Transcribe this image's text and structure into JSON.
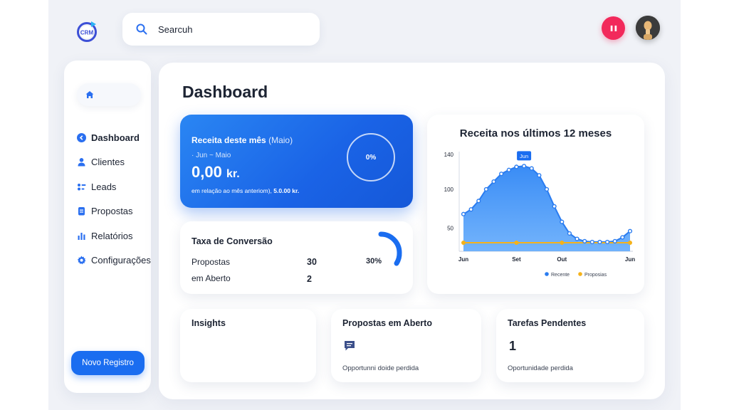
{
  "logo": {
    "text": "CRM"
  },
  "search": {
    "value": "Searcuh"
  },
  "header": {
    "pause_label": "❚❚",
    "pause_color": "#f2295b"
  },
  "sidebar": {
    "home_icon": "home-icon",
    "items": [
      {
        "label": "Dashboard",
        "icon": "arrow-left-circle-icon",
        "active": true
      },
      {
        "label": "Clientes",
        "icon": "user-icon"
      },
      {
        "label": "Leads",
        "icon": "leads-icon"
      },
      {
        "label": "Propostas",
        "icon": "document-icon"
      },
      {
        "label": "Relatórios",
        "icon": "bar-chart-icon"
      },
      {
        "label": "Configurações",
        "icon": "gear-icon"
      }
    ],
    "new_button": "Novo Registro"
  },
  "main": {
    "title": "Dashboard",
    "revenue": {
      "title": "Receita deste mês",
      "title_suffix": "(Maio)",
      "range": "· Jun ~ Maio",
      "value": "0,00",
      "unit": "kr.",
      "note": "em relação ao mês anteriom),",
      "note_value": "5.0.00 kr.",
      "ring_label": "0%",
      "ring_progress": 0
    },
    "conversion": {
      "title": "Taxa de Conversão",
      "rows": [
        {
          "label": "Propostas",
          "value": "30"
        },
        {
          "label": "em Aberto",
          "value": "2"
        }
      ],
      "percent_label": "30%",
      "percent": 30
    },
    "bottom": {
      "insights": {
        "title": "Insights"
      },
      "open_proposals": {
        "title": "Propostas em Aberto",
        "icon": "message-icon",
        "subtitle": "Opportunni doide perdida"
      },
      "tasks": {
        "title": "Tarefas Pendentes",
        "count": "1",
        "subtitle": "Oportunidade perdida"
      }
    }
  },
  "chart_data": {
    "type": "area",
    "title": "Receita nos últimos 12 meses",
    "x_tick_labels": [
      "Jun",
      "Set",
      "Out",
      "Jun"
    ],
    "y_ticks": [
      50,
      100,
      140
    ],
    "ylim": [
      20,
      145
    ],
    "tooltip": {
      "label": "Jun",
      "index": 8
    },
    "series": [
      {
        "name": "Recente",
        "color": "#2a7cf0",
        "values": [
          68,
          74,
          85,
          100,
          110,
          120,
          125,
          129,
          130,
          127,
          118,
          100,
          78,
          58,
          43,
          36,
          33,
          32,
          32,
          32,
          33,
          38,
          46
        ]
      },
      {
        "name": "Proposias",
        "color": "#f5b21a",
        "values": [
          31,
          31,
          31,
          31,
          31,
          31,
          31,
          31,
          31,
          31,
          31,
          31,
          31,
          31,
          31,
          31,
          31,
          31,
          31,
          31,
          31,
          31,
          31
        ]
      }
    ],
    "grid": false,
    "legend": "bottom-right"
  }
}
